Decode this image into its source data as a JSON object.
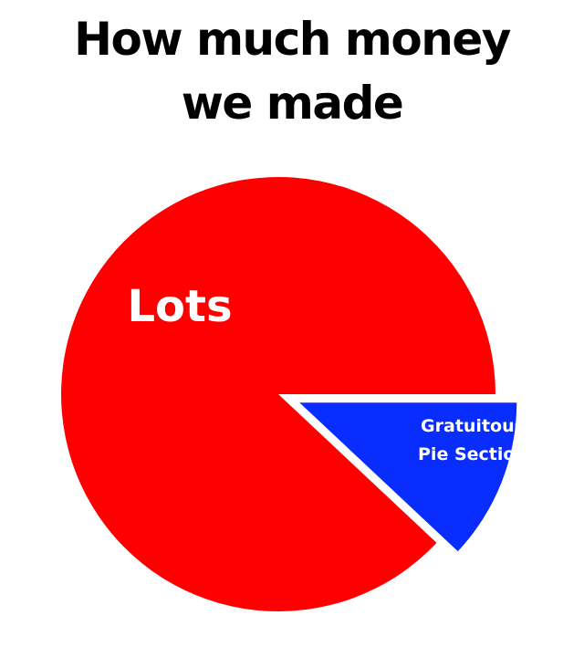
{
  "chart_data": {
    "type": "pie",
    "title": [
      "How much money",
      "we made"
    ],
    "categories": [
      "Lots",
      "Gratuitous Pie Section"
    ],
    "values": [
      88,
      12
    ],
    "exploded": [
      false,
      true
    ],
    "slice_labels": [
      [
        "Lots"
      ],
      [
        "Gratuitous",
        "Pie Section"
      ]
    ],
    "colors": [
      "#ff0000",
      "#0a2dff"
    ],
    "legend": "none"
  }
}
